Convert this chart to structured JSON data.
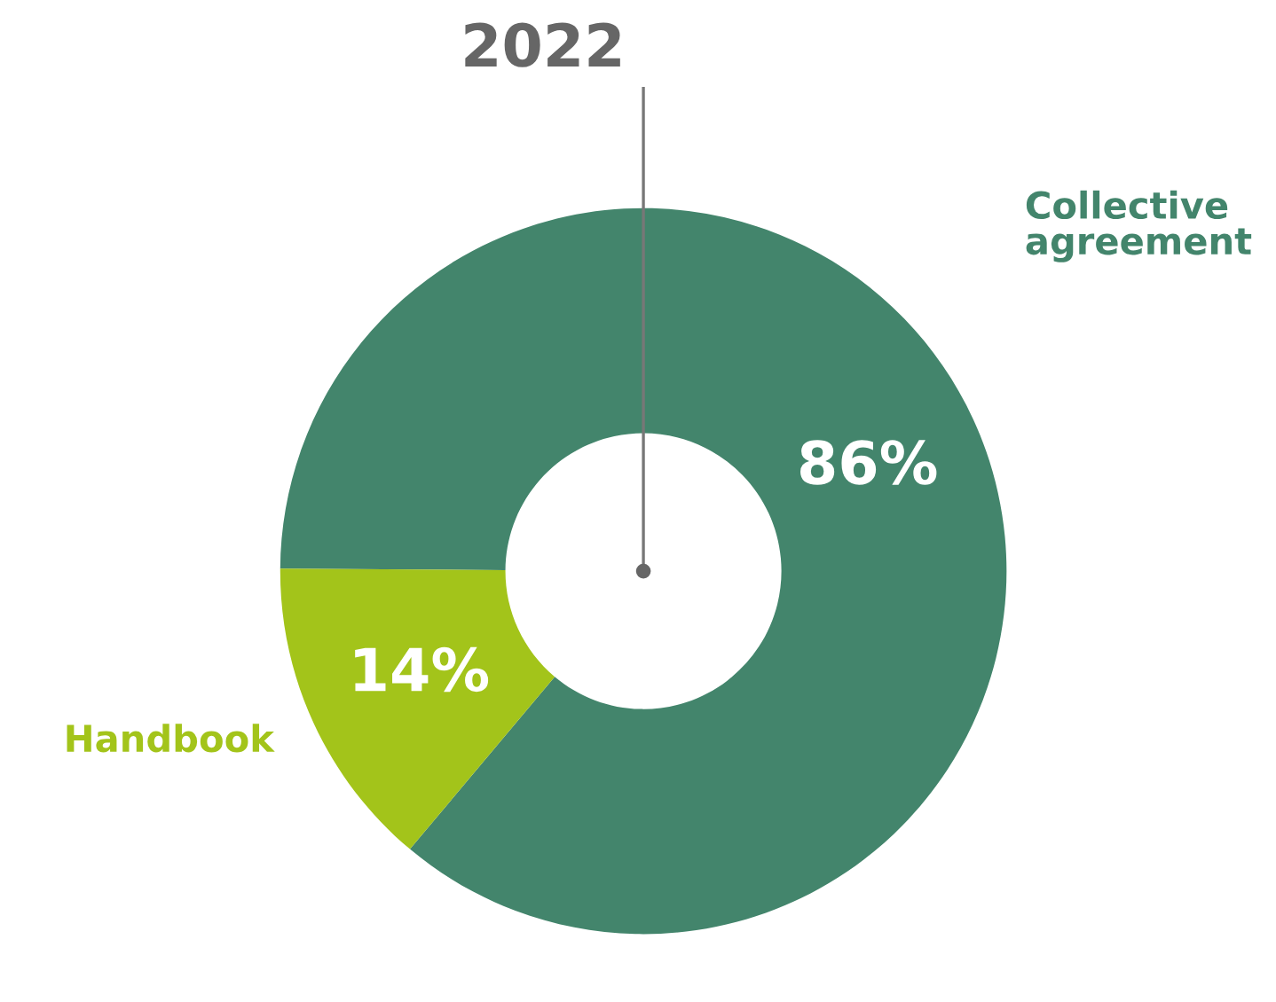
{
  "chart_data": {
    "type": "donut",
    "title": "2022",
    "categories": [
      "Collective\nagreement",
      "Handbook"
    ],
    "values": [
      86,
      14
    ],
    "colors": [
      "#43856c",
      "#a3c41a"
    ],
    "value_labels": [
      "86%",
      "14%"
    ],
    "legend": false
  }
}
